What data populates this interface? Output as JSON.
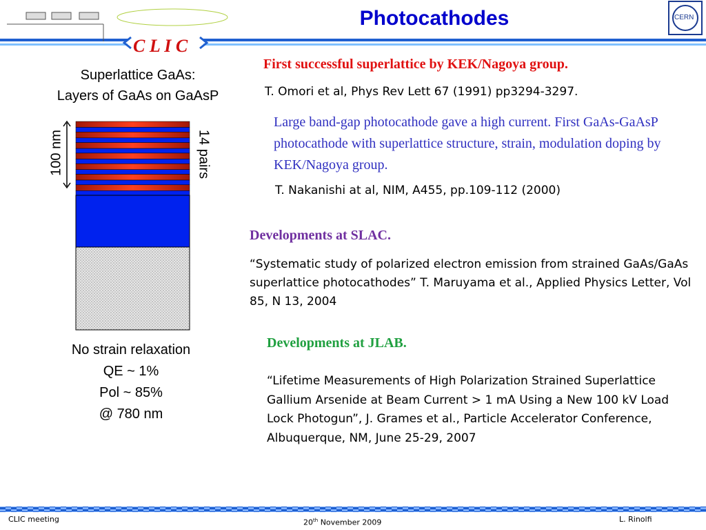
{
  "header": {
    "title": "Photocathodes",
    "logo": "C L I C",
    "cern_logo": "CERN"
  },
  "left": {
    "heading": [
      "Superlattice GaAs:",
      "Layers of GaAs on GaAsP"
    ],
    "thickness": "100 nm",
    "pairs": "14 pairs",
    "notes": [
      "No strain relaxation",
      "QE ~ 1%",
      "Pol ~ 85%",
      "@ 780 nm"
    ]
  },
  "right": {
    "kek": {
      "heading": "First successful superlattice by KEK/Nagoya group.",
      "ref1": "T. Omori et al, Phys Rev Lett 67 (1991) pp3294-3297.",
      "body": "Large band-gap photocathode gave a high current. First GaAs-GaAsP photocathode with superlattice structure, strain, modulation doping by KEK/Nagoya group.",
      "ref2": "T. Nakanishi at al, NIM, A455, pp.109-112 (2000)"
    },
    "slac": {
      "heading": "Developments at SLAC.",
      "body": "“Systematic study of polarized electron emission from strained GaAs/GaAs superlattice photocathodes” T. Maruyama et al., Applied Physics Letter,  Vol 85, N 13, 2004"
    },
    "jlab": {
      "heading": "Developments at JLAB.",
      "body": "“Lifetime Measurements of High Polarization Strained Superlattice Gallium Arsenide at Beam Current > 1 mA Using a New 100 kV Load Lock Photogun”, J. Grames et al., Particle Accelerator Conference, Albuquerque, NM, June 25-29, 2007"
    }
  },
  "footer": {
    "meeting": "CLIC  meeting",
    "date_day": "20",
    "date_suffix": "th",
    "date_rest": "November 2009",
    "author": "L. Rinolfi"
  }
}
